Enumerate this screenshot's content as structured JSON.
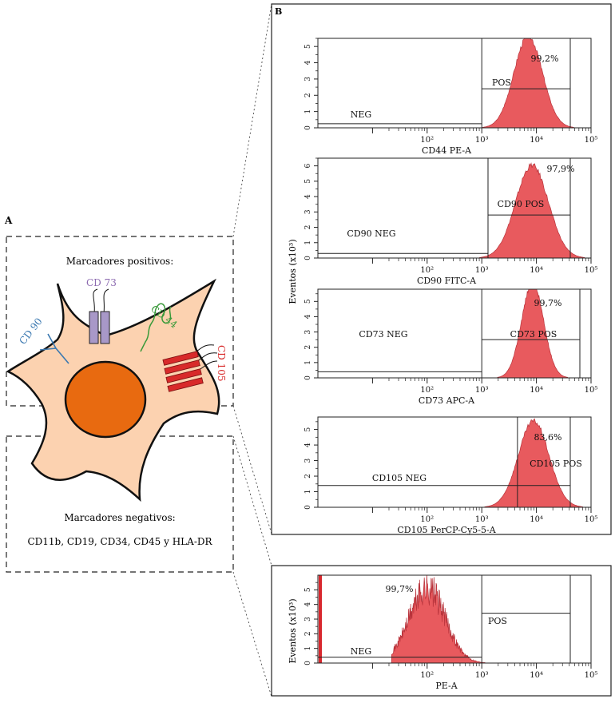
{
  "panel_a": {
    "label": "A",
    "positive_title": "Marcadores positivos:",
    "negative_title": "Marcadores negativos:",
    "negative_list": "CD11b, CD19, CD34, CD45 y HLA-DR",
    "markers": [
      {
        "name": "CD 73",
        "color": "#8c6ab0"
      },
      {
        "name": "CD 44",
        "color": "#3a9a3a"
      },
      {
        "name": "CD 90",
        "color": "#3a78b0"
      },
      {
        "name": "CD 105",
        "color": "#d82a2a"
      }
    ],
    "colors": {
      "cytoplasm": "#fcd2b0",
      "nucleus": "#e86a10",
      "outline": "#111111"
    }
  },
  "panel_b": {
    "label": "B",
    "y_axis_label": "Eventos (x10³)",
    "fill_color": "#e85a5e"
  },
  "chart_data": [
    {
      "type": "area",
      "xlabel": "CD44 PE-A",
      "x_scale": "log",
      "xlim": [
        1,
        100000
      ],
      "ylim": [
        0,
        5.5
      ],
      "y_ticks": [
        "0",
        "1",
        "2",
        "3",
        "4",
        "5"
      ],
      "x_ticks": [
        "10²",
        "10³",
        "10⁴",
        "10⁵"
      ],
      "gate_threshold": 1000,
      "neg_gate_y": 0.25,
      "pos_gate_y": 2.4,
      "labels": {
        "neg": "NEG",
        "pos": "POS",
        "percent": "99,2%"
      },
      "peak": {
        "center_log": 3.85,
        "width_log": 0.26,
        "height": 5.7
      }
    },
    {
      "type": "area",
      "xlabel": "CD90 FITC-A",
      "x_scale": "log",
      "xlim": [
        1,
        100000
      ],
      "ylim": [
        0,
        6.5
      ],
      "y_ticks": [
        "0",
        "1",
        "2",
        "3",
        "4",
        "5",
        "6"
      ],
      "x_ticks": [
        "10²",
        "10³",
        "10⁴",
        "10⁵"
      ],
      "gate_threshold": 1300,
      "neg_gate_y": 0.3,
      "pos_gate_y": 2.8,
      "labels": {
        "neg": "CD90 NEG",
        "pos": "CD90 POS",
        "percent": "97,9%"
      },
      "peak": {
        "center_log": 3.92,
        "width_log": 0.3,
        "height": 6.1
      }
    },
    {
      "type": "area",
      "xlabel": "CD73 APC-A",
      "x_scale": "log",
      "xlim": [
        1,
        100000
      ],
      "ylim": [
        0,
        5.8
      ],
      "y_ticks": [
        "0",
        "1",
        "2",
        "3",
        "4",
        "5"
      ],
      "x_ticks": [
        "10²",
        "10³",
        "10⁴",
        "10⁵"
      ],
      "gate_threshold": 1000,
      "neg_gate_y": 0.4,
      "pos_gate_y": 2.5,
      "labels": {
        "neg": "CD73 NEG",
        "pos": "CD73 POS",
        "percent": "99,7%"
      },
      "peak": {
        "center_log": 3.93,
        "width_log": 0.2,
        "height": 6.3
      }
    },
    {
      "type": "area",
      "xlabel": "CD105 PerCP-Cy5-5-A",
      "x_scale": "log",
      "xlim": [
        1,
        100000
      ],
      "ylim": [
        0,
        5.8
      ],
      "y_ticks": [
        "0",
        "1",
        "2",
        "3",
        "4",
        "5"
      ],
      "x_ticks": [
        "10²",
        "10³",
        "10⁴",
        "10⁵"
      ],
      "gate_threshold": 4500,
      "neg_gate_y": 1.4,
      "pos_gate_y": 1.4,
      "labels": {
        "neg": "CD105 NEG",
        "pos": "CD105 POS",
        "percent": "83,6%"
      },
      "peak": {
        "center_log": 3.95,
        "width_log": 0.28,
        "height": 5.6
      }
    },
    {
      "type": "area",
      "xlabel": "PE-A",
      "x_scale": "log",
      "xlim": [
        1,
        100000
      ],
      "ylim": [
        0,
        6
      ],
      "y_ticks": [
        "0",
        "1",
        "2",
        "3",
        "4",
        "5"
      ],
      "x_ticks": [
        "10²",
        "10³",
        "10⁴",
        "10⁵"
      ],
      "gate_threshold": 1000,
      "neg_gate_y": 0.4,
      "pos_gate_y": 3.4,
      "labels": {
        "neg": "NEG",
        "pos": "POS",
        "percent": "99,7%"
      },
      "peak": {
        "center_log": 2.0,
        "width_log": 0.33,
        "height": 5.4
      }
    }
  ]
}
